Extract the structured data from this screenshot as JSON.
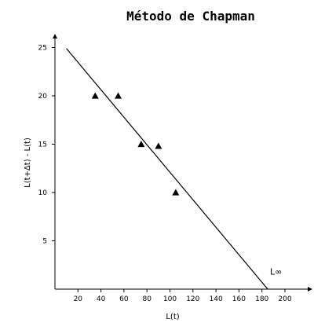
{
  "chart_data": {
    "type": "scatter",
    "title": "Método de Chapman",
    "xlabel": "L(t)",
    "ylabel": "L(t+Δt) - L(t)",
    "xlim": [
      0,
      210
    ],
    "ylim": [
      0,
      28
    ],
    "x_ticks": [
      20,
      40,
      60,
      80,
      100,
      120,
      140,
      160,
      180,
      200
    ],
    "y_ticks": [
      5,
      10,
      15,
      20,
      25
    ],
    "grid": false,
    "series": [
      {
        "marker": "triangle",
        "points": [
          {
            "x": 35,
            "y": 20
          },
          {
            "x": 55,
            "y": 20
          },
          {
            "x": 75,
            "y": 15
          },
          {
            "x": 90,
            "y": 14.8
          },
          {
            "x": 105,
            "y": 10
          }
        ]
      }
    ],
    "regression_line": {
      "x": [
        10,
        185
      ],
      "y": [
        24.9,
        0
      ]
    },
    "annotations": [
      {
        "text": "L∞",
        "x": 187,
        "y": 1.5
      }
    ]
  }
}
